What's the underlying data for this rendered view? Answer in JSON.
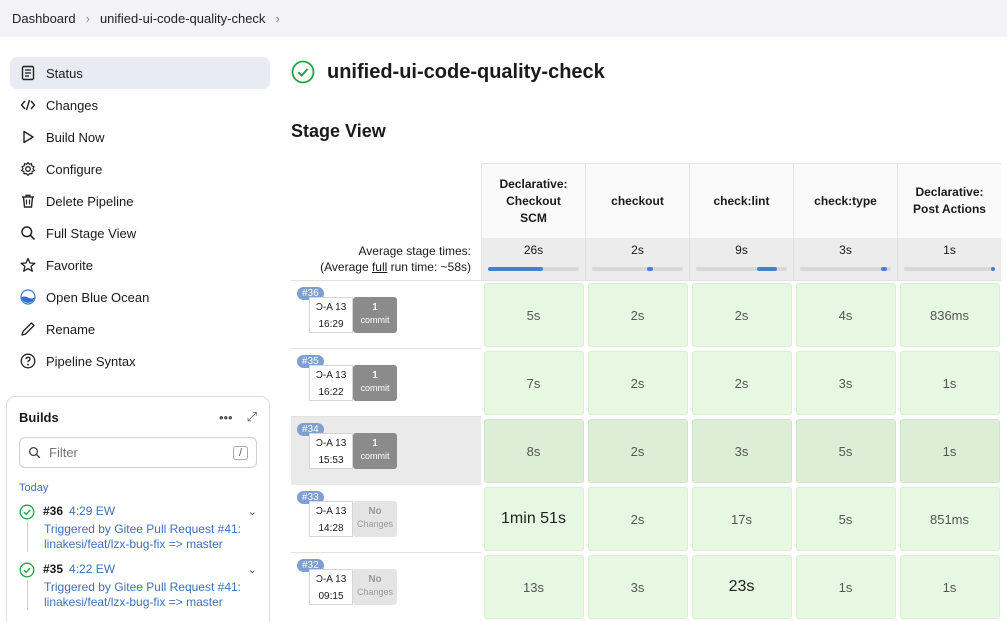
{
  "breadcrumb": {
    "items": [
      "Dashboard",
      "unified-ui-code-quality-check"
    ]
  },
  "sidebar": {
    "items": [
      {
        "label": "Status",
        "icon": "document-icon",
        "active": true
      },
      {
        "label": "Changes",
        "icon": "code-icon"
      },
      {
        "label": "Build Now",
        "icon": "play-icon"
      },
      {
        "label": "Configure",
        "icon": "gear-icon"
      },
      {
        "label": "Delete Pipeline",
        "icon": "trash-icon"
      },
      {
        "label": "Full Stage View",
        "icon": "search-icon"
      },
      {
        "label": "Favorite",
        "icon": "star-icon"
      },
      {
        "label": "Open Blue Ocean",
        "icon": "blue-ocean-icon"
      },
      {
        "label": "Rename",
        "icon": "pencil-icon"
      },
      {
        "label": "Pipeline Syntax",
        "icon": "help-icon"
      }
    ]
  },
  "builds": {
    "title": "Builds",
    "filter_placeholder": "Filter",
    "filter_shortcut": "/",
    "group": "Today",
    "items": [
      {
        "number": "#36",
        "time": "4:29 EW",
        "desc": "Triggered by Gitee Pull Request #41: linakesi/feat/lzx-bug-fix => master"
      },
      {
        "number": "#35",
        "time": "4:22 EW",
        "desc": "Triggered by Gitee Pull Request #41: linakesi/feat/lzx-bug-fix => master"
      }
    ]
  },
  "job": {
    "title": "unified-ui-code-quality-check",
    "status_color": "#1ea446"
  },
  "stage_view": {
    "title": "Stage View",
    "avg_label_line1": "Average stage times:",
    "avg_label_line2_pre": "(Average ",
    "avg_label_line2_link": "full",
    "avg_label_line2_post": " run time: ~58s)",
    "stages": [
      {
        "name_lines": [
          "Declarative:",
          "Checkout",
          "SCM"
        ],
        "avg": "26s",
        "bar_start": 0.0,
        "bar_fill": 0.6
      },
      {
        "name_lines": [
          "checkout"
        ],
        "avg": "2s",
        "bar_start": 0.6,
        "bar_fill": 0.07
      },
      {
        "name_lines": [
          "check:lint"
        ],
        "avg": "9s",
        "bar_start": 0.67,
        "bar_fill": 0.22
      },
      {
        "name_lines": [
          "check:type"
        ],
        "avg": "3s",
        "bar_start": 0.89,
        "bar_fill": 0.07
      },
      {
        "name_lines": [
          "Declarative:",
          "Post Actions"
        ],
        "avg": "1s",
        "bar_start": 0.96,
        "bar_fill": 0.04
      }
    ],
    "runs": [
      {
        "badge": "#36",
        "date": "Ͻ-A 13",
        "time": "16:29",
        "commit_count": "1",
        "commit_label": "commit",
        "highlight": false,
        "cells": [
          "5s",
          "2s",
          "2s",
          "4s",
          "836ms"
        ]
      },
      {
        "badge": "#35",
        "date": "Ͻ-A 13",
        "time": "16:22",
        "commit_count": "1",
        "commit_label": "commit",
        "highlight": false,
        "cells": [
          "7s",
          "2s",
          "2s",
          "3s",
          "1s"
        ]
      },
      {
        "badge": "#34",
        "date": "Ͻ-A 13",
        "time": "15:53",
        "commit_count": "1",
        "commit_label": "commit",
        "highlight": true,
        "cells": [
          "8s",
          "2s",
          "3s",
          "5s",
          "1s"
        ]
      },
      {
        "badge": "#33",
        "date": "Ͻ-A 13",
        "time": "14:28",
        "commit_count": "No",
        "commit_label": "Changes",
        "highlight": false,
        "cells": [
          "1min 51s",
          "2s",
          "17s",
          "5s",
          "851ms"
        ]
      },
      {
        "badge": "#32",
        "date": "Ͻ-A 13",
        "time": "09:15",
        "commit_count": "No",
        "commit_label": "Changes",
        "highlight": false,
        "cells": [
          "13s",
          "3s",
          "23s",
          "1s",
          "1s"
        ]
      }
    ]
  }
}
